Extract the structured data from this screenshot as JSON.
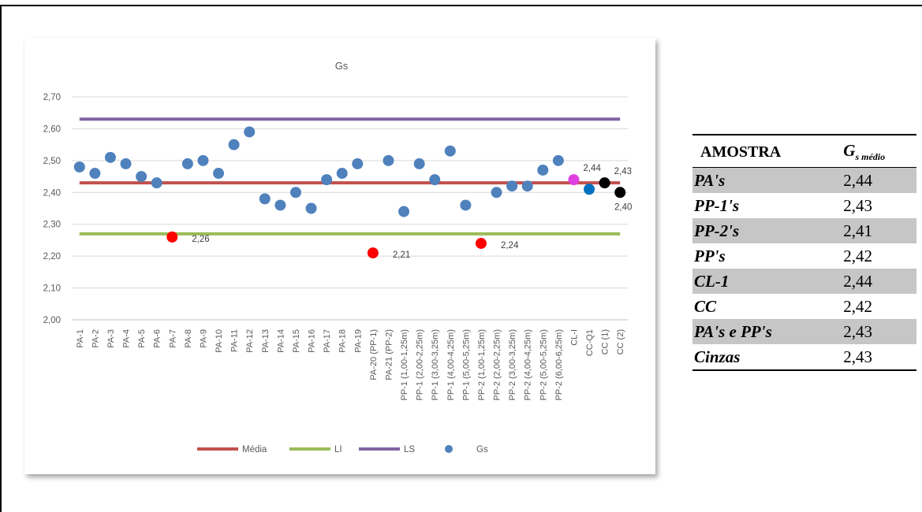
{
  "chart_data": {
    "type": "scatter",
    "title": "Gs",
    "ylim": [
      2.0,
      2.7
    ],
    "y_ticks": [
      "2,00",
      "2,10",
      "2,20",
      "2,30",
      "2,40",
      "2,50",
      "2,60",
      "2,70"
    ],
    "categories": [
      "PA-1",
      "PA-2",
      "PA-3",
      "PA-4",
      "PA-5",
      "PA-6",
      "PA-7",
      "PA-8",
      "PA-9",
      "PA-10",
      "PA-11",
      "PA-12",
      "PA-13",
      "PA-14",
      "PA-15",
      "PA-16",
      "PA-17",
      "PA-18",
      "PA-19",
      "PA-20 (PP-1)",
      "PA-21 (PP-2)",
      "PP-1 (1,00-1,25m)",
      "PP-1 (2,00-2,25m)",
      "PP-1 (3,00-3,25m)",
      "PP-1 (4,00-4,25m)",
      "PP-1 (5,00-5,25m)",
      "PP-2 (1,00-1,25m)",
      "PP-2 (2,00-2,25m)",
      "PP-2 (3,00-3,25m)",
      "PP-2 (4,00-4,25m)",
      "PP-2 (5,00-5,25m)",
      "PP-2 (6,00-6,25m)",
      "CL-I",
      "CC-Q1",
      "CC (1)",
      "CC (2)"
    ],
    "series": [
      {
        "name": "Média",
        "kind": "line",
        "color": "#c0504d",
        "value": 2.43
      },
      {
        "name": "LI",
        "kind": "line",
        "color": "#9bbb59",
        "value": 2.27
      },
      {
        "name": "LS",
        "kind": "line",
        "color": "#8064a2",
        "value": 2.63
      },
      {
        "name": "Gs",
        "kind": "scatter",
        "color": "#4f81bd",
        "values": [
          2.48,
          2.46,
          2.51,
          2.49,
          2.45,
          2.43,
          2.26,
          2.49,
          2.5,
          2.46,
          2.55,
          2.59,
          2.38,
          2.36,
          2.4,
          2.35,
          2.44,
          2.46,
          2.49,
          2.21,
          2.5,
          2.34,
          2.49,
          2.44,
          2.53,
          2.36,
          2.24,
          2.4,
          2.42,
          2.42,
          2.47,
          2.5,
          2.44,
          2.41,
          2.43,
          2.4
        ],
        "point_colors": [
          "#4f81bd",
          "#4f81bd",
          "#4f81bd",
          "#4f81bd",
          "#4f81bd",
          "#4f81bd",
          "#ff0000",
          "#4f81bd",
          "#4f81bd",
          "#4f81bd",
          "#4f81bd",
          "#4f81bd",
          "#4f81bd",
          "#4f81bd",
          "#4f81bd",
          "#4f81bd",
          "#4f81bd",
          "#4f81bd",
          "#4f81bd",
          "#ff0000",
          "#4f81bd",
          "#4f81bd",
          "#4f81bd",
          "#4f81bd",
          "#4f81bd",
          "#4f81bd",
          "#ff0000",
          "#4f81bd",
          "#4f81bd",
          "#4f81bd",
          "#4f81bd",
          "#4f81bd",
          "#e040e0",
          "#0070c0",
          "#000000",
          "#000000"
        ]
      }
    ],
    "annotations": [
      {
        "index": 6,
        "text": "2,26",
        "pos": "right"
      },
      {
        "index": 19,
        "text": "2,21",
        "pos": "right"
      },
      {
        "index": 26,
        "text": "2,24",
        "pos": "right"
      },
      {
        "index": 32,
        "text": "2,44",
        "pos": "above-right"
      },
      {
        "index": 34,
        "text": "2,43",
        "pos": "above-right"
      },
      {
        "index": 35,
        "text": "2,40",
        "pos": "below"
      }
    ],
    "legend": {
      "placement": "bottom",
      "entries": [
        "Média",
        "LI",
        "LS",
        "Gs"
      ]
    },
    "grid": true
  },
  "table": {
    "header": {
      "sample": "AMOSTRA",
      "gs_main": "G",
      "gs_sub": "s médio"
    },
    "rows": [
      {
        "name": "PA's",
        "value": "2,44",
        "shaded": true
      },
      {
        "name": "PP-1's",
        "value": "2,43",
        "shaded": false
      },
      {
        "name": "PP-2's",
        "value": "2,41",
        "shaded": true
      },
      {
        "name": "PP's",
        "value": "2,42",
        "shaded": false
      },
      {
        "name": "CL-1",
        "value": "2,44",
        "shaded": true
      },
      {
        "name": "CC",
        "value": "2,42",
        "shaded": false
      },
      {
        "name": "PA's e PP's",
        "value": "2,43",
        "shaded": true
      },
      {
        "name": "Cinzas",
        "value": "2,43",
        "shaded": false
      }
    ]
  }
}
